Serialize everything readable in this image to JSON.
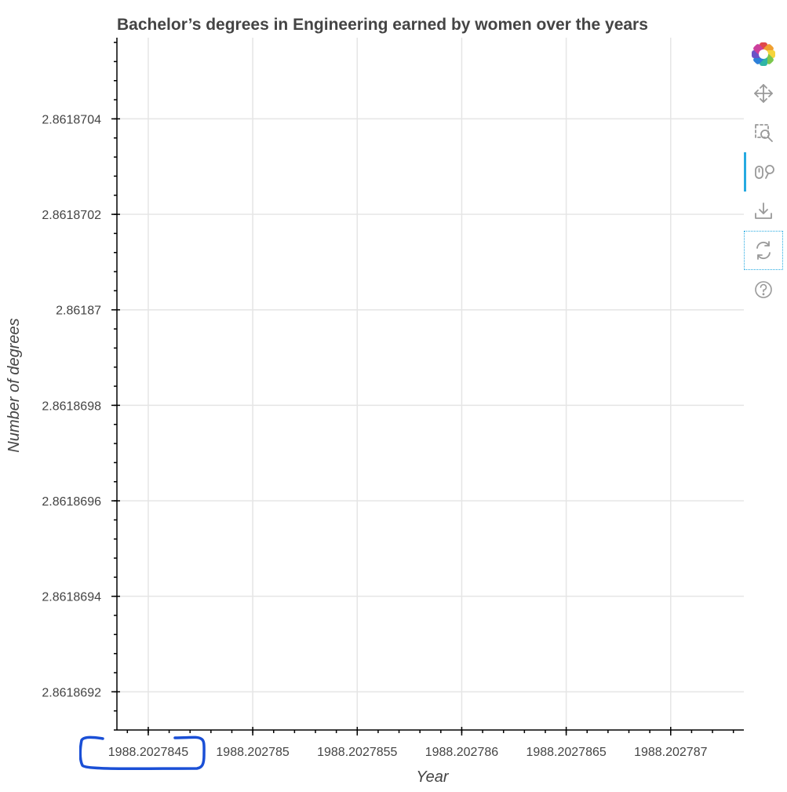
{
  "chart_data": {
    "type": "line",
    "title": "Bachelor’s degrees in Engineering earned by women over the years",
    "xlabel": "Year",
    "ylabel": "Number of degrees",
    "x_ticks": [
      "1988.2027845",
      "1988.202785",
      "1988.2027855",
      "1988.202786",
      "1988.2027865",
      "1988.202787"
    ],
    "x_tick_values": [
      1988.2027845,
      1988.202785,
      1988.2027855,
      1988.202786,
      1988.2027865,
      1988.202787
    ],
    "y_ticks": [
      "2.8618692",
      "2.8618694",
      "2.8618696",
      "2.8618698",
      "2.86187",
      "2.8618702",
      "2.8618704"
    ],
    "y_tick_values": [
      2.8618692,
      2.8618694,
      2.8618696,
      2.8618698,
      2.86187,
      2.8618702,
      2.8618704
    ],
    "xlim": [
      1988.20278435,
      1988.20278735
    ],
    "ylim": [
      2.86186912,
      2.86187057
    ],
    "grid": true,
    "series": []
  },
  "toolbar": {
    "tools": [
      "bokeh-logo-icon",
      "pan-icon",
      "box-zoom-icon",
      "wheel-zoom-icon",
      "save-icon",
      "reset-icon",
      "help-icon"
    ],
    "active_tool": "wheel-zoom-icon"
  },
  "annotation": {
    "highlight_color": "#1a4fd6"
  }
}
